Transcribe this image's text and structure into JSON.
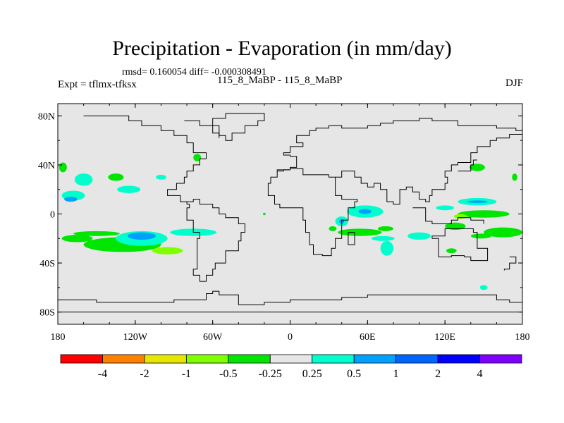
{
  "header": {
    "title": "Precipitation - Evaporation (in mm/day)",
    "stats": "rmsd= 0.160054 diff= -0.000308491",
    "expt": "Expt = tflmx-tfksx",
    "center_label": "115_8_MaBP - 115_8_MaBP",
    "season": "DJF"
  },
  "chart_data": {
    "type": "heatmap",
    "title": "Precipitation - Evaporation (in mm/day)",
    "xlabel": "",
    "ylabel": "",
    "xlim": [
      -180,
      180
    ],
    "ylim": [
      -90,
      90
    ],
    "x_ticks": [
      {
        "value": -180,
        "label": "180"
      },
      {
        "value": -120,
        "label": "120W"
      },
      {
        "value": -60,
        "label": "60W"
      },
      {
        "value": 0,
        "label": "0"
      },
      {
        "value": 60,
        "label": "60E"
      },
      {
        "value": 120,
        "label": "120E"
      },
      {
        "value": 180,
        "label": "180"
      }
    ],
    "y_ticks": [
      {
        "value": 80,
        "label": "80N"
      },
      {
        "value": 40,
        "label": "40N"
      },
      {
        "value": 0,
        "label": "0"
      },
      {
        "value": -40,
        "label": "40S"
      },
      {
        "value": -80,
        "label": "80S"
      }
    ],
    "background_color": "#e6e6e6",
    "colorbar": {
      "colors": [
        "#ff0000",
        "#ff8000",
        "#e6e600",
        "#80ff00",
        "#00e600",
        "#e6e6e6",
        "#00ffcc",
        "#00a0ff",
        "#0064ff",
        "#0000ff",
        "#8000ff"
      ],
      "labels": [
        "-4",
        "-2",
        "-1",
        "-0.5",
        "-0.25",
        "0.25",
        "0.5",
        "1",
        "2",
        "4"
      ]
    },
    "anomaly_patches": [
      {
        "lon": -160,
        "lat": 28,
        "rlon": 7,
        "rlat": 5,
        "color": "#00ffcc"
      },
      {
        "lon": -168,
        "lat": 15,
        "rlon": 9,
        "rlat": 4,
        "color": "#00ffcc"
      },
      {
        "lon": -170,
        "lat": 12,
        "rlon": 5,
        "rlat": 2,
        "color": "#00a0ff"
      },
      {
        "lon": -176,
        "lat": 38,
        "rlon": 3,
        "rlat": 4,
        "color": "#00e600"
      },
      {
        "lon": -135,
        "lat": 30,
        "rlon": 6,
        "rlat": 3,
        "color": "#00e600"
      },
      {
        "lon": -125,
        "lat": 20,
        "rlon": 9,
        "rlat": 3,
        "color": "#00ffcc"
      },
      {
        "lon": -100,
        "lat": 30,
        "rlon": 4,
        "rlat": 2,
        "color": "#00ffcc"
      },
      {
        "lon": -72,
        "lat": 46,
        "rlon": 3,
        "rlat": 3,
        "color": "#00e600"
      },
      {
        "lon": -150,
        "lat": -16,
        "rlon": 18,
        "rlat": 2,
        "color": "#00e600"
      },
      {
        "lon": -165,
        "lat": -20,
        "rlon": 12,
        "rlat": 3,
        "color": "#00e600"
      },
      {
        "lon": -130,
        "lat": -25,
        "rlon": 30,
        "rlat": 6,
        "color": "#00e600"
      },
      {
        "lon": -115,
        "lat": -20,
        "rlon": 20,
        "rlat": 6,
        "color": "#00ffcc"
      },
      {
        "lon": -115,
        "lat": -18,
        "rlon": 11,
        "rlat": 3,
        "color": "#00a0ff"
      },
      {
        "lon": -95,
        "lat": -30,
        "rlon": 12,
        "rlat": 3,
        "color": "#80ff00"
      },
      {
        "lon": -75,
        "lat": -15,
        "rlon": 18,
        "rlat": 3,
        "color": "#00ffcc"
      },
      {
        "lon": 33,
        "lat": -12,
        "rlon": 3,
        "rlat": 2,
        "color": "#00e600"
      },
      {
        "lon": 40,
        "lat": -6,
        "rlon": 5,
        "rlat": 4,
        "color": "#00ffcc"
      },
      {
        "lon": 40,
        "lat": -6,
        "rlon": 2,
        "rlat": 2,
        "color": "#00a0ff"
      },
      {
        "lon": 58,
        "lat": 2,
        "rlon": 14,
        "rlat": 5,
        "color": "#00ffcc"
      },
      {
        "lon": 58,
        "lat": 2,
        "rlon": 5,
        "rlat": 2,
        "color": "#00a0ff"
      },
      {
        "lon": 54,
        "lat": -15,
        "rlon": 17,
        "rlat": 3,
        "color": "#00e600"
      },
      {
        "lon": 74,
        "lat": -12,
        "rlon": 6,
        "rlat": 2,
        "color": "#00e600"
      },
      {
        "lon": 72,
        "lat": -20,
        "rlon": 9,
        "rlat": 2,
        "color": "#00ffcc"
      },
      {
        "lon": 75,
        "lat": -28,
        "rlon": 5,
        "rlat": 6,
        "color": "#00ffcc"
      },
      {
        "lon": 100,
        "lat": -18,
        "rlon": 9,
        "rlat": 3,
        "color": "#00ffcc"
      },
      {
        "lon": 120,
        "lat": 5,
        "rlon": 7,
        "rlat": 2,
        "color": "#00ffcc"
      },
      {
        "lon": 145,
        "lat": 10,
        "rlon": 15,
        "rlat": 3,
        "color": "#00ffcc"
      },
      {
        "lon": 145,
        "lat": 10,
        "rlon": 8,
        "rlat": 1,
        "color": "#00a0ff"
      },
      {
        "lon": 150,
        "lat": 0,
        "rlon": 20,
        "rlat": 3,
        "color": "#00e600"
      },
      {
        "lon": 132,
        "lat": -2,
        "rlon": 5,
        "rlat": 2,
        "color": "#80ff00"
      },
      {
        "lon": 128,
        "lat": -10,
        "rlon": 8,
        "rlat": 3,
        "color": "#00e600"
      },
      {
        "lon": 165,
        "lat": -15,
        "rlon": 15,
        "rlat": 4,
        "color": "#00e600"
      },
      {
        "lon": 148,
        "lat": -18,
        "rlon": 8,
        "rlat": 2,
        "color": "#00e600"
      },
      {
        "lon": 145,
        "lat": 38,
        "rlon": 6,
        "rlat": 3,
        "color": "#00e600"
      },
      {
        "lon": 174,
        "lat": 30,
        "rlon": 2,
        "rlat": 3,
        "color": "#00e600"
      },
      {
        "lon": 125,
        "lat": -30,
        "rlon": 4,
        "rlat": 2,
        "color": "#00e600"
      },
      {
        "lon": 150,
        "lat": -60,
        "rlon": 3,
        "rlat": 2,
        "color": "#00ffcc"
      },
      {
        "lon": -20,
        "lat": 0,
        "rlon": 1,
        "rlat": 1,
        "color": "#00e600"
      }
    ],
    "coastlines": [
      [
        [
          -160,
          80
        ],
        [
          -125,
          80
        ],
        [
          -125,
          76
        ],
        [
          -115,
          76
        ],
        [
          -115,
          72
        ],
        [
          -100,
          72
        ],
        [
          -100,
          68
        ],
        [
          -90,
          68
        ],
        [
          -90,
          64
        ],
        [
          -80,
          64
        ],
        [
          -80,
          58
        ],
        [
          -75,
          58
        ],
        [
          -75,
          50
        ],
        [
          -65,
          50
        ],
        [
          -65,
          45
        ],
        [
          -70,
          45
        ],
        [
          -70,
          40
        ],
        [
          -75,
          40
        ],
        [
          -75,
          35
        ],
        [
          -80,
          35
        ],
        [
          -80,
          30
        ],
        [
          -82,
          30
        ],
        [
          -82,
          25
        ],
        [
          -88,
          25
        ],
        [
          -88,
          20
        ],
        [
          -95,
          20
        ],
        [
          -95,
          15
        ],
        [
          -90,
          15
        ],
        [
          -85,
          10
        ],
        [
          -80,
          8
        ],
        [
          -78,
          5
        ],
        [
          -80,
          0
        ],
        [
          -80,
          -5
        ],
        [
          -75,
          -15
        ],
        [
          -70,
          -20
        ],
        [
          -72,
          -35
        ],
        [
          -72,
          -45
        ],
        [
          -75,
          -50
        ],
        [
          -70,
          -55
        ],
        [
          -65,
          -55
        ],
        [
          -65,
          -50
        ],
        [
          -60,
          -45
        ],
        [
          -58,
          -40
        ],
        [
          -50,
          -30
        ],
        [
          -40,
          -22
        ],
        [
          -38,
          -15
        ],
        [
          -35,
          -8
        ],
        [
          -40,
          -3
        ],
        [
          -50,
          0
        ],
        [
          -55,
          5
        ],
        [
          -60,
          8
        ],
        [
          -70,
          12
        ],
        [
          -75,
          10
        ],
        [
          -80,
          8
        ]
      ],
      [
        [
          -82,
          76
        ],
        [
          -70,
          76
        ],
        [
          -70,
          72
        ],
        [
          -60,
          72
        ],
        [
          -60,
          66
        ],
        [
          -55,
          66
        ],
        [
          -55,
          62
        ]
      ],
      [
        [
          -50,
          82
        ],
        [
          -20,
          82
        ],
        [
          -20,
          76
        ],
        [
          -25,
          72
        ],
        [
          -35,
          66
        ],
        [
          -45,
          60
        ],
        [
          -50,
          64
        ],
        [
          -55,
          72
        ],
        [
          -60,
          78
        ],
        [
          -50,
          82
        ]
      ],
      [
        [
          -10,
          35
        ],
        [
          -5,
          36
        ],
        [
          0,
          38
        ],
        [
          5,
          43
        ],
        [
          5,
          47
        ],
        [
          0,
          48
        ],
        [
          -5,
          50
        ],
        [
          0,
          55
        ],
        [
          10,
          55
        ],
        [
          10,
          58
        ],
        [
          5,
          60
        ],
        [
          5,
          64
        ],
        [
          15,
          68
        ],
        [
          20,
          70
        ],
        [
          30,
          72
        ],
        [
          40,
          70
        ],
        [
          50,
          70
        ],
        [
          60,
          72
        ],
        [
          70,
          74
        ],
        [
          80,
          76
        ],
        [
          100,
          78
        ],
        [
          110,
          76
        ],
        [
          130,
          72
        ],
        [
          140,
          72
        ],
        [
          160,
          70
        ],
        [
          175,
          68
        ],
        [
          180,
          66
        ]
      ],
      [
        [
          -17,
          20
        ],
        [
          -17,
          15
        ],
        [
          -12,
          8
        ],
        [
          -8,
          5
        ],
        [
          0,
          5
        ],
        [
          8,
          5
        ],
        [
          10,
          2
        ],
        [
          10,
          -5
        ],
        [
          12,
          -15
        ],
        [
          15,
          -25
        ],
        [
          18,
          -33
        ],
        [
          25,
          -34
        ],
        [
          32,
          -28
        ],
        [
          35,
          -20
        ],
        [
          40,
          -15
        ],
        [
          40,
          -5
        ],
        [
          45,
          5
        ],
        [
          50,
          10
        ],
        [
          52,
          12
        ],
        [
          45,
          12
        ],
        [
          40,
          15
        ],
        [
          35,
          25
        ],
        [
          35,
          30
        ],
        [
          30,
          32
        ],
        [
          20,
          32
        ],
        [
          10,
          37
        ],
        [
          5,
          37
        ],
        [
          0,
          36
        ],
        [
          -5,
          36
        ],
        [
          -10,
          30
        ],
        [
          -15,
          25
        ],
        [
          -17,
          20
        ]
      ],
      [
        [
          45,
          -15
        ],
        [
          50,
          -15
        ],
        [
          50,
          -25
        ],
        [
          45,
          -25
        ],
        [
          45,
          -15
        ]
      ],
      [
        [
          35,
          30
        ],
        [
          40,
          35
        ],
        [
          50,
          30
        ],
        [
          55,
          25
        ],
        [
          60,
          22
        ],
        [
          65,
          25
        ],
        [
          70,
          20
        ],
        [
          75,
          10
        ],
        [
          80,
          8
        ],
        [
          85,
          20
        ],
        [
          90,
          22
        ],
        [
          95,
          18
        ],
        [
          100,
          12
        ],
        [
          105,
          10
        ],
        [
          108,
          15
        ],
        [
          110,
          20
        ],
        [
          120,
          25
        ],
        [
          122,
          30
        ],
        [
          120,
          35
        ],
        [
          125,
          40
        ],
        [
          130,
          42
        ],
        [
          140,
          50
        ],
        [
          145,
          55
        ],
        [
          155,
          60
        ],
        [
          160,
          62
        ],
        [
          170,
          65
        ],
        [
          180,
          66
        ]
      ],
      [
        [
          110,
          -20
        ],
        [
          115,
          -35
        ],
        [
          125,
          -34
        ],
        [
          135,
          -35
        ],
        [
          140,
          -38
        ],
        [
          150,
          -38
        ],
        [
          153,
          -28
        ],
        [
          145,
          -15
        ],
        [
          142,
          -12
        ],
        [
          135,
          -12
        ],
        [
          130,
          -12
        ],
        [
          120,
          -18
        ],
        [
          110,
          -20
        ]
      ],
      [
        [
          95,
          5
        ],
        [
          105,
          -6
        ],
        [
          110,
          -8
        ],
        [
          120,
          -8
        ],
        [
          125,
          -5
        ],
        [
          130,
          -3
        ],
        [
          140,
          -5
        ],
        [
          150,
          -8
        ]
      ],
      [
        [
          130,
          35
        ],
        [
          135,
          35
        ],
        [
          140,
          40
        ],
        [
          142,
          44
        ],
        [
          145,
          44
        ]
      ],
      [
        [
          170,
          -35
        ],
        [
          175,
          -40
        ],
        [
          170,
          -45
        ],
        [
          166,
          -46
        ]
      ],
      [
        [
          -180,
          -70
        ],
        [
          -150,
          -72
        ],
        [
          -120,
          -72
        ],
        [
          -90,
          -70
        ],
        [
          -65,
          -65
        ],
        [
          -60,
          -63
        ],
        [
          -55,
          -66
        ],
        [
          -40,
          -74
        ],
        [
          -20,
          -72
        ],
        [
          0,
          -70
        ],
        [
          20,
          -70
        ],
        [
          40,
          -68
        ],
        [
          60,
          -66
        ],
        [
          80,
          -66
        ],
        [
          100,
          -66
        ],
        [
          120,
          -66
        ],
        [
          140,
          -66
        ],
        [
          160,
          -70
        ],
        [
          170,
          -72
        ],
        [
          180,
          -72
        ]
      ],
      [
        [
          -180,
          -80
        ],
        [
          -120,
          -80
        ],
        [
          -60,
          -80
        ],
        [
          0,
          -80
        ],
        [
          60,
          -80
        ],
        [
          120,
          -80
        ],
        [
          180,
          -80
        ]
      ]
    ]
  }
}
